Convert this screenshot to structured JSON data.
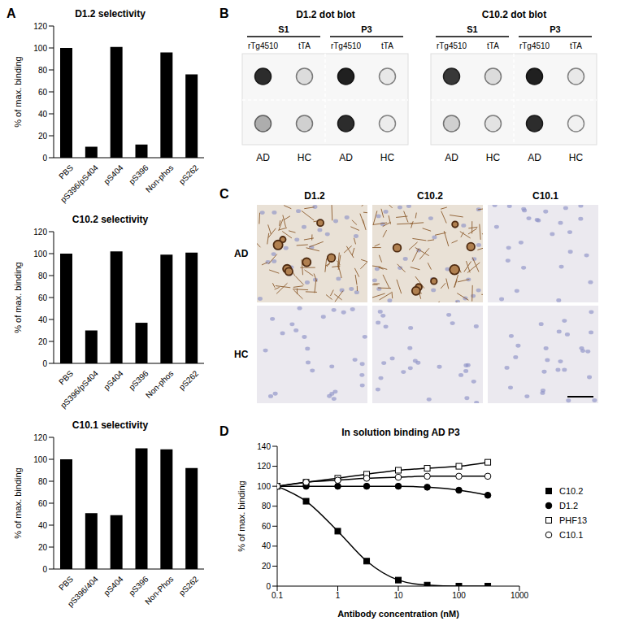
{
  "panel_letters": [
    "A",
    "B",
    "C",
    "D"
  ],
  "chart_data": [
    {
      "type": "bar",
      "title": "D1.2 selectivity",
      "categories": [
        "PBS",
        "pS396/pS404",
        "pS404",
        "pS396",
        "Non-phos",
        "pS262"
      ],
      "values": [
        100,
        10,
        101,
        12,
        96,
        76
      ],
      "color": "#000000",
      "ylabel": "% of max. binding",
      "ylim": [
        0,
        120
      ],
      "yticks": [
        0,
        20,
        40,
        60,
        80,
        100,
        120
      ]
    },
    {
      "type": "bar",
      "title": "C10.2 selectivity",
      "categories": [
        "PBS",
        "pS396/pS404",
        "pS404",
        "pS396",
        "Non-phos",
        "pS262"
      ],
      "values": [
        100,
        30,
        102,
        37,
        99,
        101
      ],
      "color": "#000000",
      "ylabel": "% of max. binding",
      "ylim": [
        0,
        120
      ],
      "yticks": [
        0,
        20,
        40,
        60,
        80,
        100,
        120
      ]
    },
    {
      "type": "bar",
      "title": "C10.1 selectivity",
      "categories": [
        "PBS",
        "pS396/404",
        "pS404",
        "pS396",
        "Non-Phos",
        "pS262"
      ],
      "values": [
        100,
        51,
        49,
        110,
        109,
        92
      ],
      "color": "#000000",
      "ylabel": "% of max. binding",
      "ylim": [
        0,
        120
      ],
      "yticks": [
        0,
        20,
        40,
        60,
        80,
        100,
        120
      ]
    },
    {
      "type": "line",
      "title": "In solution binding AD P3",
      "xlabel": "Antibody concentration (nM)",
      "ylabel": "% of max. binding",
      "log": "x",
      "x": [
        0.1,
        0.3,
        1,
        3,
        10,
        30,
        100,
        300
      ],
      "xlim": [
        0.1,
        1000
      ],
      "xticks": [
        0.1,
        1,
        10,
        100,
        1000
      ],
      "ylim": [
        0,
        140
      ],
      "yticks": [
        0,
        20,
        40,
        60,
        80,
        100,
        120,
        140
      ],
      "legend": "right",
      "series": [
        {
          "name": "C10.2",
          "color": "#000000",
          "marker": "square",
          "values": [
            100,
            85,
            55,
            25,
            6,
            1,
            0,
            0
          ]
        },
        {
          "name": "D1.2",
          "color": "#000000",
          "marker": "circle",
          "values": [
            100,
            100,
            100,
            100,
            100,
            99,
            96,
            91
          ]
        },
        {
          "name": "PHF13",
          "color": "#000000",
          "marker": "open_square",
          "values": [
            100,
            104,
            108,
            112,
            116,
            118,
            120,
            124
          ]
        },
        {
          "name": "C10.1",
          "color": "#000000",
          "marker": "open_circle",
          "values": [
            100,
            104,
            106,
            108,
            109,
            110,
            110,
            110
          ]
        }
      ]
    }
  ],
  "dot_blots": [
    {
      "title": "D1.2 dot blot",
      "groups": [
        "S1",
        "P3"
      ],
      "top_labels": [
        "rTg4510",
        "tTA"
      ],
      "bottom_labels": [
        "AD",
        "HC",
        "AD",
        "HC"
      ],
      "intensity": [
        [
          0.9,
          0.15,
          0.95,
          0.1
        ],
        [
          0.35,
          0.2,
          0.9,
          0.08
        ]
      ]
    },
    {
      "title": "C10.2 dot blot",
      "groups": [
        "S1",
        "P3"
      ],
      "top_labels": [
        "rTg4510",
        "tTA"
      ],
      "bottom_labels": [
        "AD",
        "HC",
        "AD",
        "HC"
      ],
      "intensity": [
        [
          0.85,
          0.15,
          0.95,
          0.1
        ],
        [
          0.2,
          0.12,
          0.9,
          0.06
        ]
      ]
    }
  ],
  "micrographs": {
    "columns": [
      "D1.2",
      "C10.2",
      "C10.1"
    ],
    "rows": [
      "AD",
      "HC"
    ],
    "stained": [
      [
        true,
        true,
        false
      ],
      [
        false,
        false,
        false
      ]
    ]
  }
}
